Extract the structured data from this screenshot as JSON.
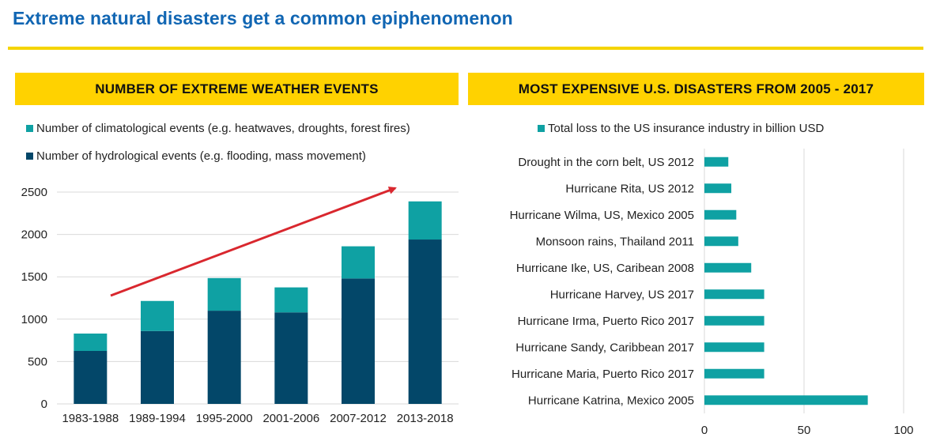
{
  "title": "Extreme natural disasters get a common epiphenomenon",
  "colors": {
    "accent": "#ffd200",
    "title": "#1166b3",
    "climatological": "#0fa1a3",
    "hydrological": "#034769",
    "arrow": "#d9272e",
    "loss": "#0fa1a3"
  },
  "chart_data": [
    {
      "type": "bar",
      "stacked": true,
      "title": "NUMBER OF EXTREME WEATHER EVENTS",
      "categories": [
        "1983-1988",
        "1989-1994",
        "1995-2000",
        "2001-2006",
        "2007-2012",
        "2013-2018"
      ],
      "series": [
        {
          "name": "Number of hydrological events (e.g. flooding, mass movement)",
          "values": [
            625,
            860,
            1100,
            1080,
            1480,
            1940
          ]
        },
        {
          "name": "Number of climatological events (e.g. heatwaves, droughts, forest fires)",
          "values": [
            205,
            355,
            385,
            295,
            380,
            450
          ]
        }
      ],
      "legend_order": [
        1,
        0
      ],
      "yticks": [
        0,
        500,
        1000,
        1500,
        2000,
        2500
      ],
      "ylim": [
        0,
        2500
      ],
      "grid": true,
      "legend": "top-left"
    },
    {
      "type": "bar",
      "orientation": "horizontal",
      "title": "MOST EXPENSIVE U.S. DISASTERS FROM 2005 - 2017",
      "categories": [
        "Drought in the corn belt, US 2012",
        "Hurricane Rita, US 2012",
        "Hurricane Wilma, US, Mexico 2005",
        "Monsoon rains, Thailand 2011",
        "Hurricane Ike, US, Caribean 2008",
        "Hurricane Harvey, US 2017",
        "Hurricane Irma, Puerto Rico 2017",
        "Hurricane Sandy, Caribbean 2017",
        "Hurricane Maria, Puerto Rico 2017",
        "Hurricane Katrina, Mexico 2005"
      ],
      "series": [
        {
          "name": "Total loss to the US insurance industry in billion USD",
          "values": [
            12,
            13.5,
            16,
            17,
            23.5,
            30,
            30,
            30,
            30,
            82
          ]
        }
      ],
      "xticks": [
        0,
        50,
        100
      ],
      "xlim": [
        0,
        100
      ],
      "grid": true,
      "legend": "top"
    }
  ]
}
